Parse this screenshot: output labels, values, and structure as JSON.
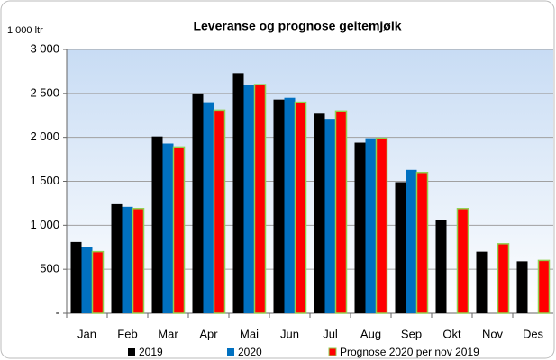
{
  "chart_data": {
    "type": "bar",
    "title": "Leveranse og prognose geitemjølk",
    "y_axis_label": "1 000 ltr",
    "categories": [
      "Jan",
      "Feb",
      "Mar",
      "Apr",
      "Mai",
      "Jun",
      "Jul",
      "Aug",
      "Sep",
      "Okt",
      "Nov",
      "Des"
    ],
    "series": [
      {
        "name": "2019",
        "color": "#000000",
        "values": [
          810,
          1240,
          2010,
          2500,
          2730,
          2430,
          2270,
          1940,
          1490,
          1060,
          700,
          590
        ]
      },
      {
        "name": "2020",
        "color": "#0070c0",
        "values": [
          750,
          1210,
          1930,
          2400,
          2600,
          2450,
          2210,
          1990,
          1630,
          null,
          null,
          null
        ]
      },
      {
        "name": "Prognose 2020 per nov 2019",
        "color": "#ff0000",
        "border_color": "#92d050",
        "values": [
          700,
          1190,
          1890,
          2310,
          2600,
          2400,
          2300,
          1990,
          1600,
          1190,
          790,
          600
        ]
      }
    ],
    "ylim": [
      0,
      3000
    ],
    "yticks": [
      {
        "value": 0,
        "label": "-"
      },
      500,
      {
        "value": 1000,
        "label": "1 000"
      },
      {
        "value": 1500,
        "label": "1 500"
      },
      {
        "value": 2000,
        "label": "2 000"
      },
      {
        "value": 2500,
        "label": "2 500"
      },
      {
        "value": 3000,
        "label": "3 000"
      }
    ],
    "grid": true,
    "legend": "bottom"
  }
}
